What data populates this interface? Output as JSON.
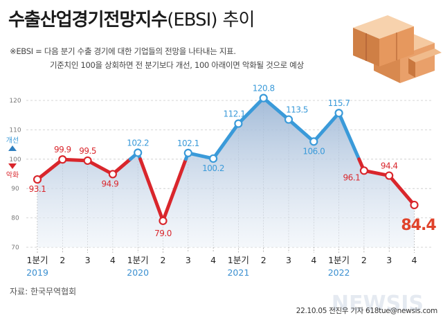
{
  "title_main": "수출산업경기전망지수",
  "title_paren": "(EBSI)",
  "title_tail": "추이",
  "note_line1": "※EBSI = 다음 분기 수출 경기에 대한 기업들의 전망을 나타내는 지표.",
  "note_line2": "기준치인 100을 상회하면 전 분기보다 개선, 100 아래이면 악화될 것으로 예상",
  "legend": {
    "up_label": "개선",
    "down_label": "악화"
  },
  "source": "자료: 한국무역협회",
  "credit": "22.10.05 전진우 기자 618tue@newsis.com",
  "watermark": "NEWSIS",
  "colors": {
    "blue": "#3a9ad9",
    "red": "#d9262c",
    "fill_top": "#9fb8d6",
    "fill_bottom": "#eef3f9",
    "grid": "#c8c8c8",
    "year": "#3a8fd0"
  },
  "chart_data": {
    "type": "line",
    "title": "수출산업경기전망지수(EBSI) 추이",
    "xlabel": "",
    "ylabel": "",
    "ylim": [
      70,
      120
    ],
    "yticks": [
      "70",
      "80",
      "90",
      "100",
      "110",
      "120"
    ],
    "categories": [
      "1분기",
      "2",
      "3",
      "4",
      "1분기",
      "2",
      "3",
      "4",
      "1분기",
      "2",
      "3",
      "4",
      "1분기",
      "2",
      "3",
      "4"
    ],
    "years": [
      {
        "label": "2019",
        "index": 0
      },
      {
        "label": "2020",
        "index": 4
      },
      {
        "label": "2021",
        "index": 8
      },
      {
        "label": "2022",
        "index": 12
      }
    ],
    "values": [
      93.1,
      99.9,
      99.5,
      94.9,
      102.2,
      79.0,
      102.1,
      100.2,
      112.1,
      120.8,
      113.5,
      106.0,
      115.7,
      96.1,
      94.4,
      84.4
    ],
    "value_labels": [
      "93.1",
      "99.9",
      "99.5",
      "94.9",
      "102.2",
      "79.0",
      "102.1",
      "100.2",
      "112.1",
      "120.8",
      "113.5",
      "106.0",
      "115.7",
      "96.1",
      "94.4",
      "84.4"
    ],
    "baseline": 100,
    "highlight_last": "84.4"
  }
}
